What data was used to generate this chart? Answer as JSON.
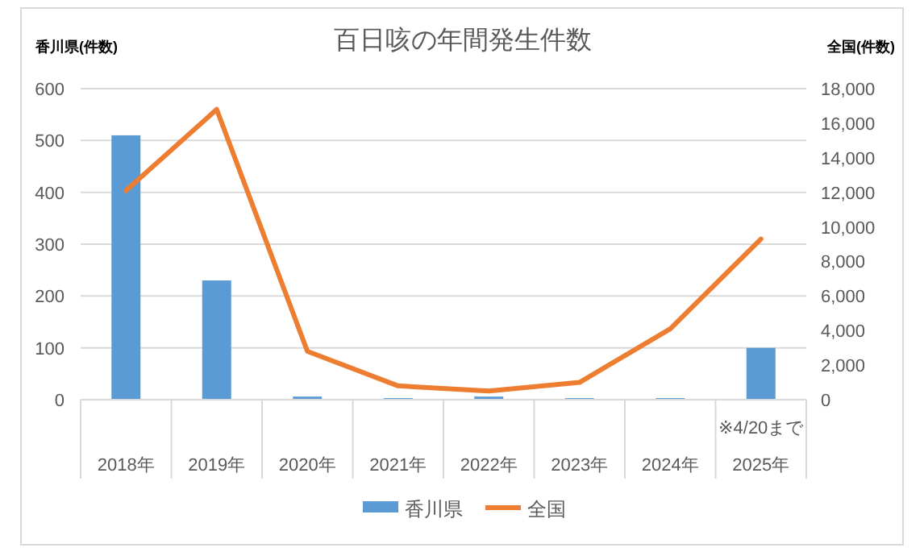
{
  "chart_data": {
    "type": "bar",
    "title": "百日咳の年間発生件数",
    "ylabel": "香川県(件数)",
    "y2label": "全国(件数)",
    "categories": [
      "2018年",
      "2019年",
      "2020年",
      "2021年",
      "2022年",
      "2023年",
      "2024年",
      "2025年"
    ],
    "series": [
      {
        "name": "香川県",
        "color": "#5b9bd5",
        "values": [
          510,
          230,
          6,
          3,
          6,
          3,
          3,
          100
        ]
      },
      {
        "name": "全国",
        "type": "line",
        "axis": "y2",
        "color": "#ed7d31",
        "values": [
          12100,
          16800,
          2800,
          800,
          500,
          1000,
          4100,
          9300
        ]
      }
    ],
    "ylim": [
      0,
      600
    ],
    "yticks": [
      0,
      100,
      200,
      300,
      400,
      500,
      600
    ],
    "y2lim": [
      0,
      18000
    ],
    "y2ticks": [
      0,
      {
        "value": 2000,
        "label": "2,000"
      },
      {
        "value": 4000,
        "label": "4,000"
      },
      {
        "value": 6000,
        "label": "6,000"
      },
      {
        "value": 8000,
        "label": "8,000"
      },
      {
        "value": 10000,
        "label": "10,000"
      },
      {
        "value": 12000,
        "label": "12,000"
      },
      {
        "value": 14000,
        "label": "14,000"
      },
      {
        "value": 16000,
        "label": "16,000"
      },
      {
        "value": 18000,
        "label": "18,000"
      }
    ],
    "annotations": [
      "※4/20まで"
    ],
    "grid": "y",
    "legend": "bottom",
    "marker": "none",
    "line_style": "solid"
  }
}
